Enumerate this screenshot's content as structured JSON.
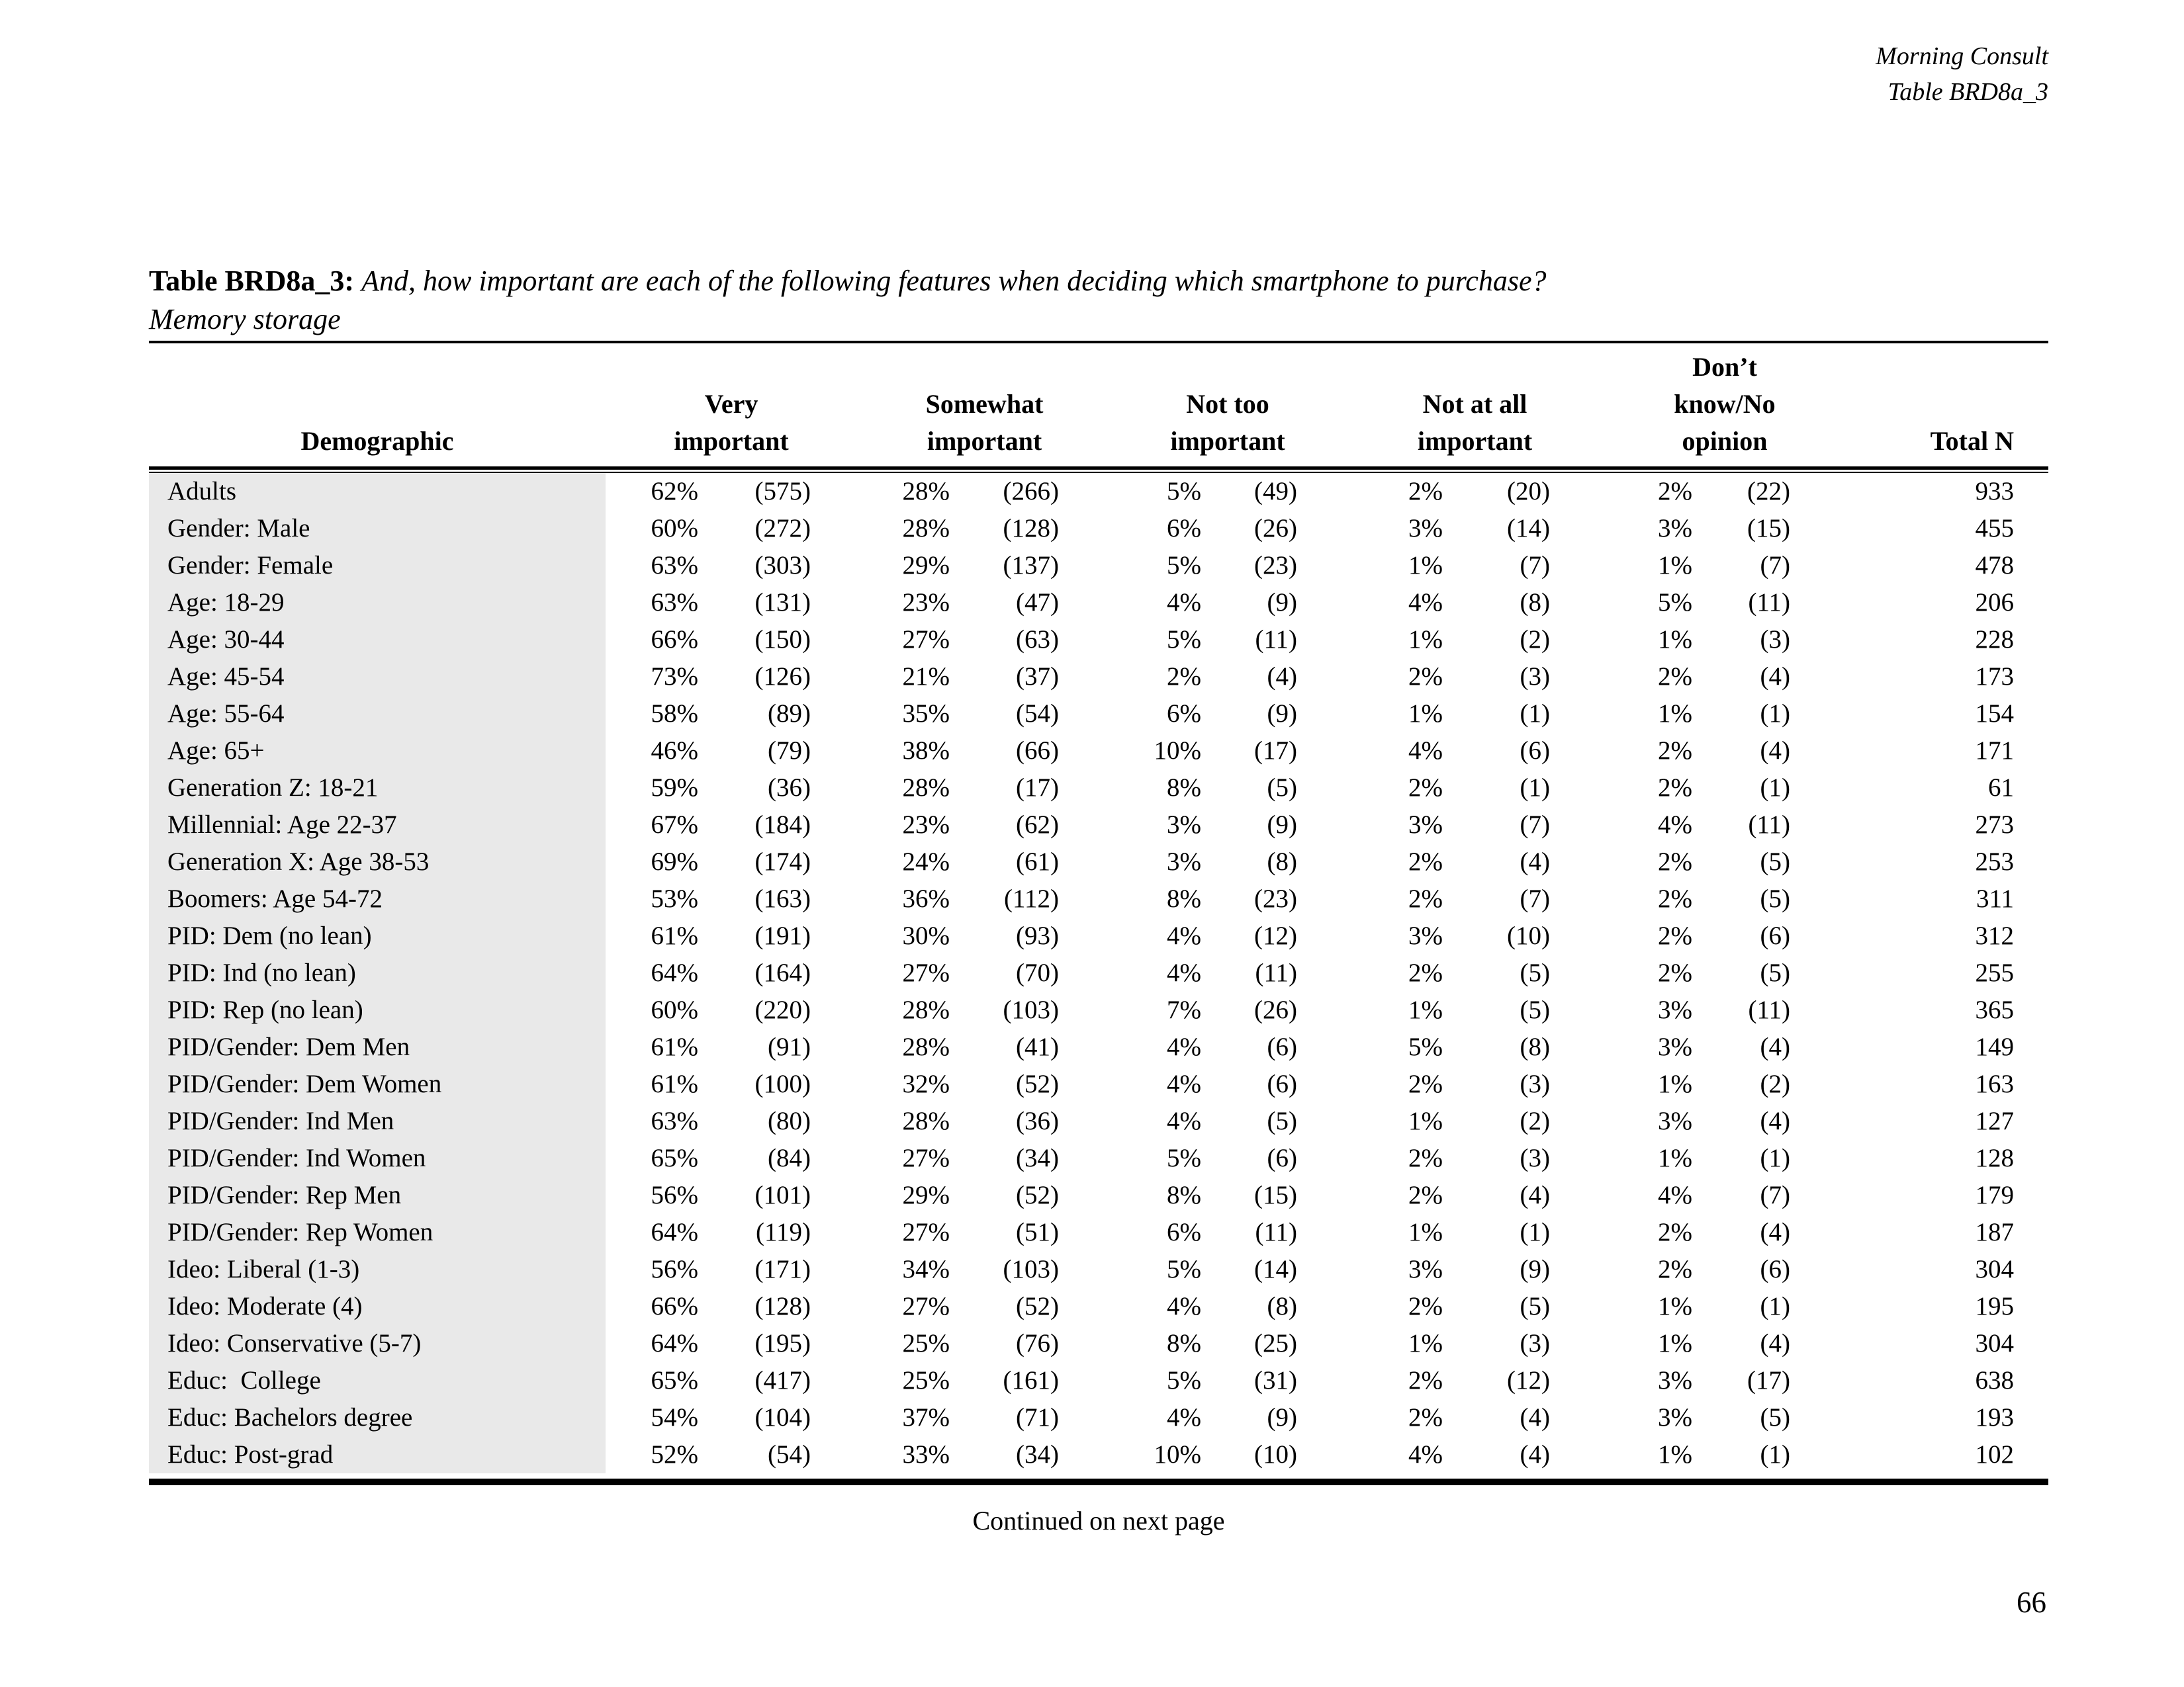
{
  "page_header": {
    "org": "Morning Consult",
    "table_ref": "Table BRD8a_3"
  },
  "title": {
    "label": "Table BRD8a_3:",
    "question": "And, how important are each of the following features when deciding which smartphone to purchase?",
    "subtitle": "Memory storage"
  },
  "colors": {
    "demographic_column_shade": "#e9e9e9",
    "rule_color": "#000000"
  },
  "table": {
    "col_demographic": "Demographic",
    "col_groups": [
      {
        "line1": "",
        "line2": "Very important"
      },
      {
        "line1": "Somewhat",
        "line2": "important"
      },
      {
        "line1": "Not too",
        "line2": "important"
      },
      {
        "line1": "Not at all",
        "line2": "important"
      },
      {
        "line1": "Don’t know/No",
        "line2": "opinion"
      }
    ],
    "col_total": "Total N",
    "rows": [
      [
        "Adults",
        "62%",
        "(575)",
        "28%",
        "(266)",
        "5%",
        "(49)",
        "2%",
        "(20)",
        "2%",
        "(22)",
        "933"
      ],
      [
        "Gender: Male",
        "60%",
        "(272)",
        "28%",
        "(128)",
        "6%",
        "(26)",
        "3%",
        "(14)",
        "3%",
        "(15)",
        "455"
      ],
      [
        "Gender: Female",
        "63%",
        "(303)",
        "29%",
        "(137)",
        "5%",
        "(23)",
        "1%",
        "(7)",
        "1%",
        "(7)",
        "478"
      ],
      [
        "Age: 18-29",
        "63%",
        "(131)",
        "23%",
        "(47)",
        "4%",
        "(9)",
        "4%",
        "(8)",
        "5%",
        "(11)",
        "206"
      ],
      [
        "Age: 30-44",
        "66%",
        "(150)",
        "27%",
        "(63)",
        "5%",
        "(11)",
        "1%",
        "(2)",
        "1%",
        "(3)",
        "228"
      ],
      [
        "Age: 45-54",
        "73%",
        "(126)",
        "21%",
        "(37)",
        "2%",
        "(4)",
        "2%",
        "(3)",
        "2%",
        "(4)",
        "173"
      ],
      [
        "Age: 55-64",
        "58%",
        "(89)",
        "35%",
        "(54)",
        "6%",
        "(9)",
        "1%",
        "(1)",
        "1%",
        "(1)",
        "154"
      ],
      [
        "Age: 65+",
        "46%",
        "(79)",
        "38%",
        "(66)",
        "10%",
        "(17)",
        "4%",
        "(6)",
        "2%",
        "(4)",
        "171"
      ],
      [
        "Generation Z: 18-21",
        "59%",
        "(36)",
        "28%",
        "(17)",
        "8%",
        "(5)",
        "2%",
        "(1)",
        "2%",
        "(1)",
        "61"
      ],
      [
        "Millennial: Age 22-37",
        "67%",
        "(184)",
        "23%",
        "(62)",
        "3%",
        "(9)",
        "3%",
        "(7)",
        "4%",
        "(11)",
        "273"
      ],
      [
        "Generation X: Age 38-53",
        "69%",
        "(174)",
        "24%",
        "(61)",
        "3%",
        "(8)",
        "2%",
        "(4)",
        "2%",
        "(5)",
        "253"
      ],
      [
        "Boomers: Age 54-72",
        "53%",
        "(163)",
        "36%",
        "(112)",
        "8%",
        "(23)",
        "2%",
        "(7)",
        "2%",
        "(5)",
        "311"
      ],
      [
        "PID: Dem (no lean)",
        "61%",
        "(191)",
        "30%",
        "(93)",
        "4%",
        "(12)",
        "3%",
        "(10)",
        "2%",
        "(6)",
        "312"
      ],
      [
        "PID: Ind (no lean)",
        "64%",
        "(164)",
        "27%",
        "(70)",
        "4%",
        "(11)",
        "2%",
        "(5)",
        "2%",
        "(5)",
        "255"
      ],
      [
        "PID: Rep (no lean)",
        "60%",
        "(220)",
        "28%",
        "(103)",
        "7%",
        "(26)",
        "1%",
        "(5)",
        "3%",
        "(11)",
        "365"
      ],
      [
        "PID/Gender: Dem Men",
        "61%",
        "(91)",
        "28%",
        "(41)",
        "4%",
        "(6)",
        "5%",
        "(8)",
        "3%",
        "(4)",
        "149"
      ],
      [
        "PID/Gender: Dem Women",
        "61%",
        "(100)",
        "32%",
        "(52)",
        "4%",
        "(6)",
        "2%",
        "(3)",
        "1%",
        "(2)",
        "163"
      ],
      [
        "PID/Gender: Ind Men",
        "63%",
        "(80)",
        "28%",
        "(36)",
        "4%",
        "(5)",
        "1%",
        "(2)",
        "3%",
        "(4)",
        "127"
      ],
      [
        "PID/Gender: Ind Women",
        "65%",
        "(84)",
        "27%",
        "(34)",
        "5%",
        "(6)",
        "2%",
        "(3)",
        "1%",
        "(1)",
        "128"
      ],
      [
        "PID/Gender: Rep Men",
        "56%",
        "(101)",
        "29%",
        "(52)",
        "8%",
        "(15)",
        "2%",
        "(4)",
        "4%",
        "(7)",
        "179"
      ],
      [
        "PID/Gender: Rep Women",
        "64%",
        "(119)",
        "27%",
        "(51)",
        "6%",
        "(11)",
        "1%",
        "(1)",
        "2%",
        "(4)",
        "187"
      ],
      [
        "Ideo: Liberal (1-3)",
        "56%",
        "(171)",
        "34%",
        "(103)",
        "5%",
        "(14)",
        "3%",
        "(9)",
        "2%",
        "(6)",
        "304"
      ],
      [
        "Ideo: Moderate (4)",
        "66%",
        "(128)",
        "27%",
        "(52)",
        "4%",
        "(8)",
        "2%",
        "(5)",
        "1%",
        "(1)",
        "195"
      ],
      [
        "Ideo: Conservative (5-7)",
        "64%",
        "(195)",
        "25%",
        "(76)",
        "8%",
        "(25)",
        "1%",
        "(3)",
        "1%",
        "(4)",
        "304"
      ],
      [
        "Educ:  College",
        "65%",
        "(417)",
        "25%",
        "(161)",
        "5%",
        "(31)",
        "2%",
        "(12)",
        "3%",
        "(17)",
        "638"
      ],
      [
        "Educ: Bachelors degree",
        "54%",
        "(104)",
        "37%",
        "(71)",
        "4%",
        "(9)",
        "2%",
        "(4)",
        "3%",
        "(5)",
        "193"
      ],
      [
        "Educ: Post-grad",
        "52%",
        "(54)",
        "33%",
        "(34)",
        "10%",
        "(10)",
        "4%",
        "(4)",
        "1%",
        "(1)",
        "102"
      ]
    ]
  },
  "footer": {
    "continued": "Continued on next page",
    "page_number": "66"
  }
}
